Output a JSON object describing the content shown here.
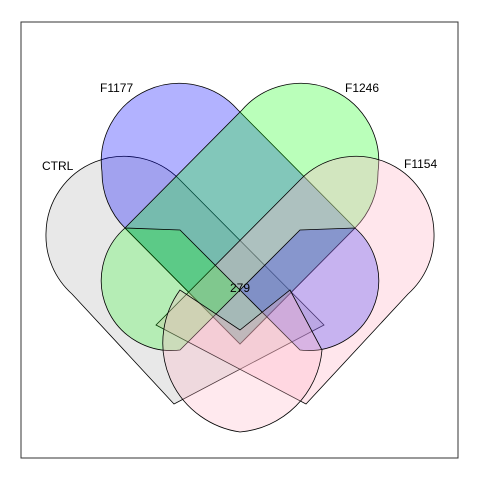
{
  "diagram": {
    "type": "venn-4-set",
    "sets": [
      {
        "name": "CTRL",
        "color": "#c8c8c8"
      },
      {
        "name": "F1177",
        "color": "#0000ff"
      },
      {
        "name": "F1246",
        "color": "#00ff00"
      },
      {
        "name": "F1154",
        "color": "#ffb6c8"
      }
    ],
    "outline_color": "#000000",
    "intersection_all": "279"
  }
}
